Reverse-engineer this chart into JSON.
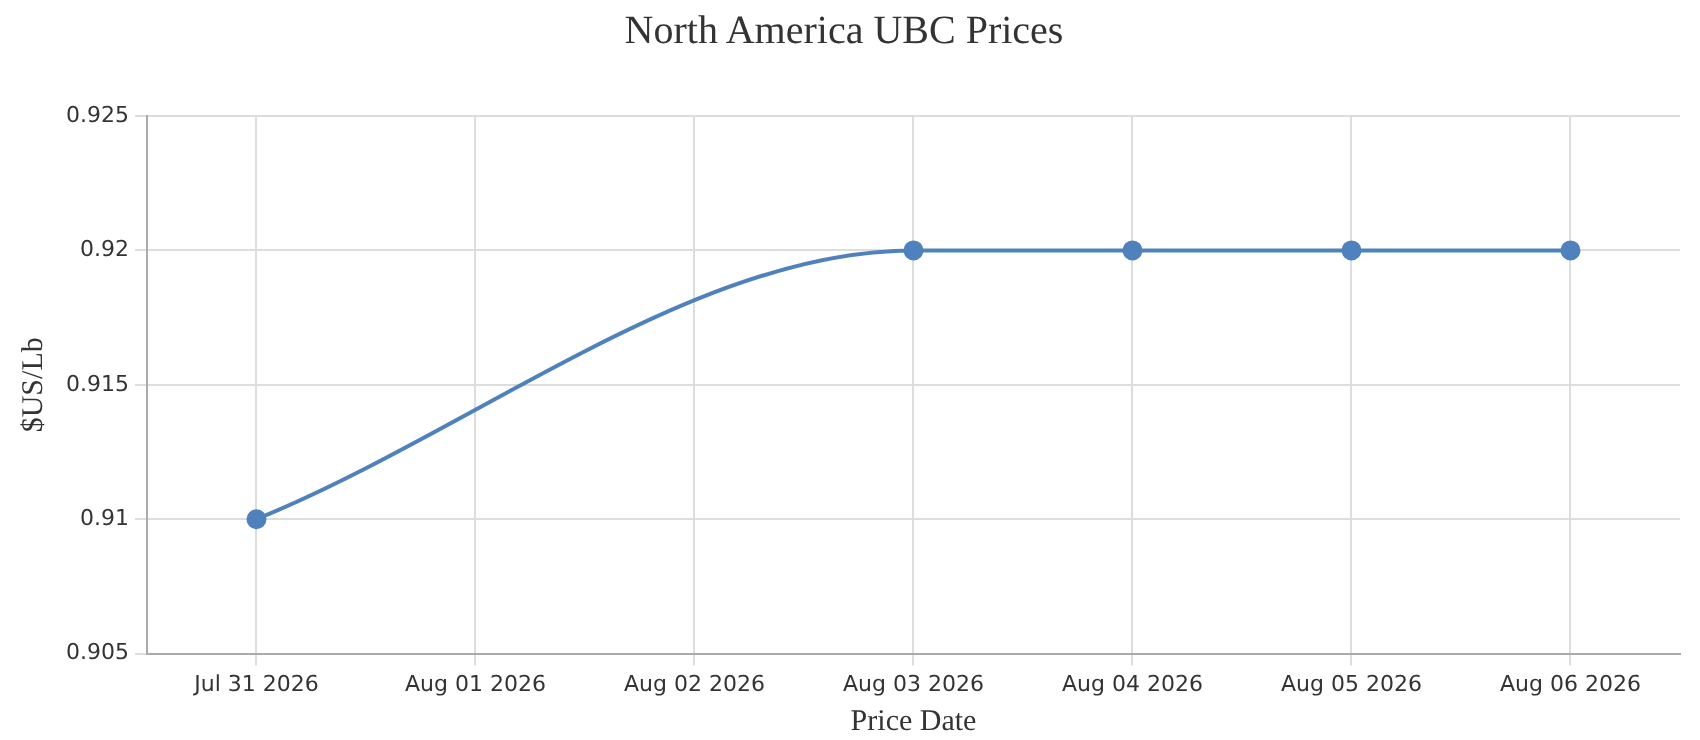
{
  "chart_data": {
    "type": "line",
    "title": "North America UBC Prices",
    "xlabel": "Price Date",
    "ylabel": "$US/Lb",
    "x": [
      "2026-07-31",
      "2026-08-03",
      "2026-08-04",
      "2026-08-05",
      "2026-08-06"
    ],
    "series": [
      {
        "color": "#4f81bc",
        "values": [
          0.91,
          0.92,
          0.92,
          0.92,
          0.92
        ]
      }
    ],
    "xlim": [
      "2026-07-30T12:00",
      "2026-08-06T12:00"
    ],
    "xticks": [
      {
        "value": "2026-07-31",
        "label": "Jul 31 2026"
      },
      {
        "value": "2026-08-01",
        "label": "Aug 01 2026"
      },
      {
        "value": "2026-08-02",
        "label": "Aug 02 2026"
      },
      {
        "value": "2026-08-03",
        "label": "Aug 03 2026"
      },
      {
        "value": "2026-08-04",
        "label": "Aug 04 2026"
      },
      {
        "value": "2026-08-05",
        "label": "Aug 05 2026"
      },
      {
        "value": "2026-08-06",
        "label": "Aug 06 2026"
      }
    ],
    "ylim": [
      0.905,
      0.925
    ],
    "yticks": [
      0.905,
      0.91,
      0.915,
      0.92,
      0.925
    ],
    "grid": true,
    "legend": false,
    "marker": "circle",
    "line_style": "solid"
  }
}
